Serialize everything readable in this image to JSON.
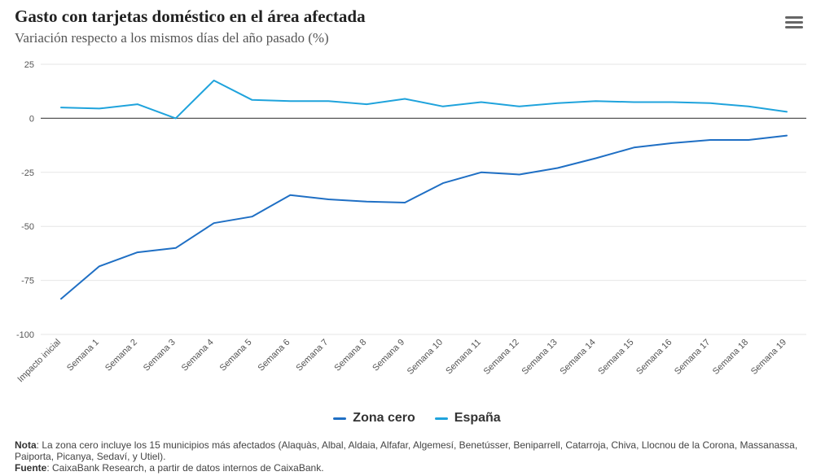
{
  "chart_data": {
    "type": "line",
    "title": "Gasto con tarjetas doméstico en el área afectada",
    "subtitle": "Variación respecto a los mismos días del año pasado (%)",
    "categories": [
      "Impacto inicial",
      "Semana 1",
      "Semana 2",
      "Semana 3",
      "Semana 4",
      "Semana 5",
      "Semana 6",
      "Semana 7",
      "Semana 8",
      "Semana 9",
      "Semana 10",
      "Semana 11",
      "Semana 12",
      "Semana 13",
      "Semana 14",
      "Semana 15",
      "Semana 16",
      "Semana 17",
      "Semana 18",
      "Semana 19"
    ],
    "y_ticks": [
      "25",
      "0",
      "-25",
      "-50",
      "-75",
      "-100"
    ],
    "ylim": [
      -100,
      25
    ],
    "grid": true,
    "legend_position": "bottom",
    "series": [
      {
        "name": "Zona cero",
        "color": "#1f6fc4",
        "values": [
          -83.5,
          -68.5,
          -62,
          -60,
          -48.5,
          -45.5,
          -35.5,
          -37.5,
          -38.5,
          -39,
          -30,
          -25,
          -26,
          -23,
          -18.5,
          -13.5,
          -11.5,
          -10,
          -10,
          -8
        ]
      },
      {
        "name": "España",
        "color": "#1fa3dc",
        "values": [
          5,
          4.5,
          6.5,
          0,
          17.5,
          8.5,
          8,
          8,
          6.5,
          9,
          5.5,
          7.5,
          5.5,
          7,
          8,
          7.5,
          7.5,
          7,
          5.5,
          3
        ]
      }
    ]
  },
  "notes": {
    "nota_label": "Nota",
    "nota_text": ": La zona cero incluye los 15 municipios más afectados (Alaquàs, Albal, Aldaia, Alfafar, Algemesí, Benetússer, Beniparrell, Catarroja, Chiva, Llocnou de la Corona, Massanassa, Paiporta, Picanya, Sedaví, y Utiel).",
    "fuente_label": "Fuente",
    "fuente_text": ": CaixaBank Research, a partir de datos internos de CaixaBank."
  },
  "icons": {
    "menu": "hamburger-menu-icon"
  }
}
